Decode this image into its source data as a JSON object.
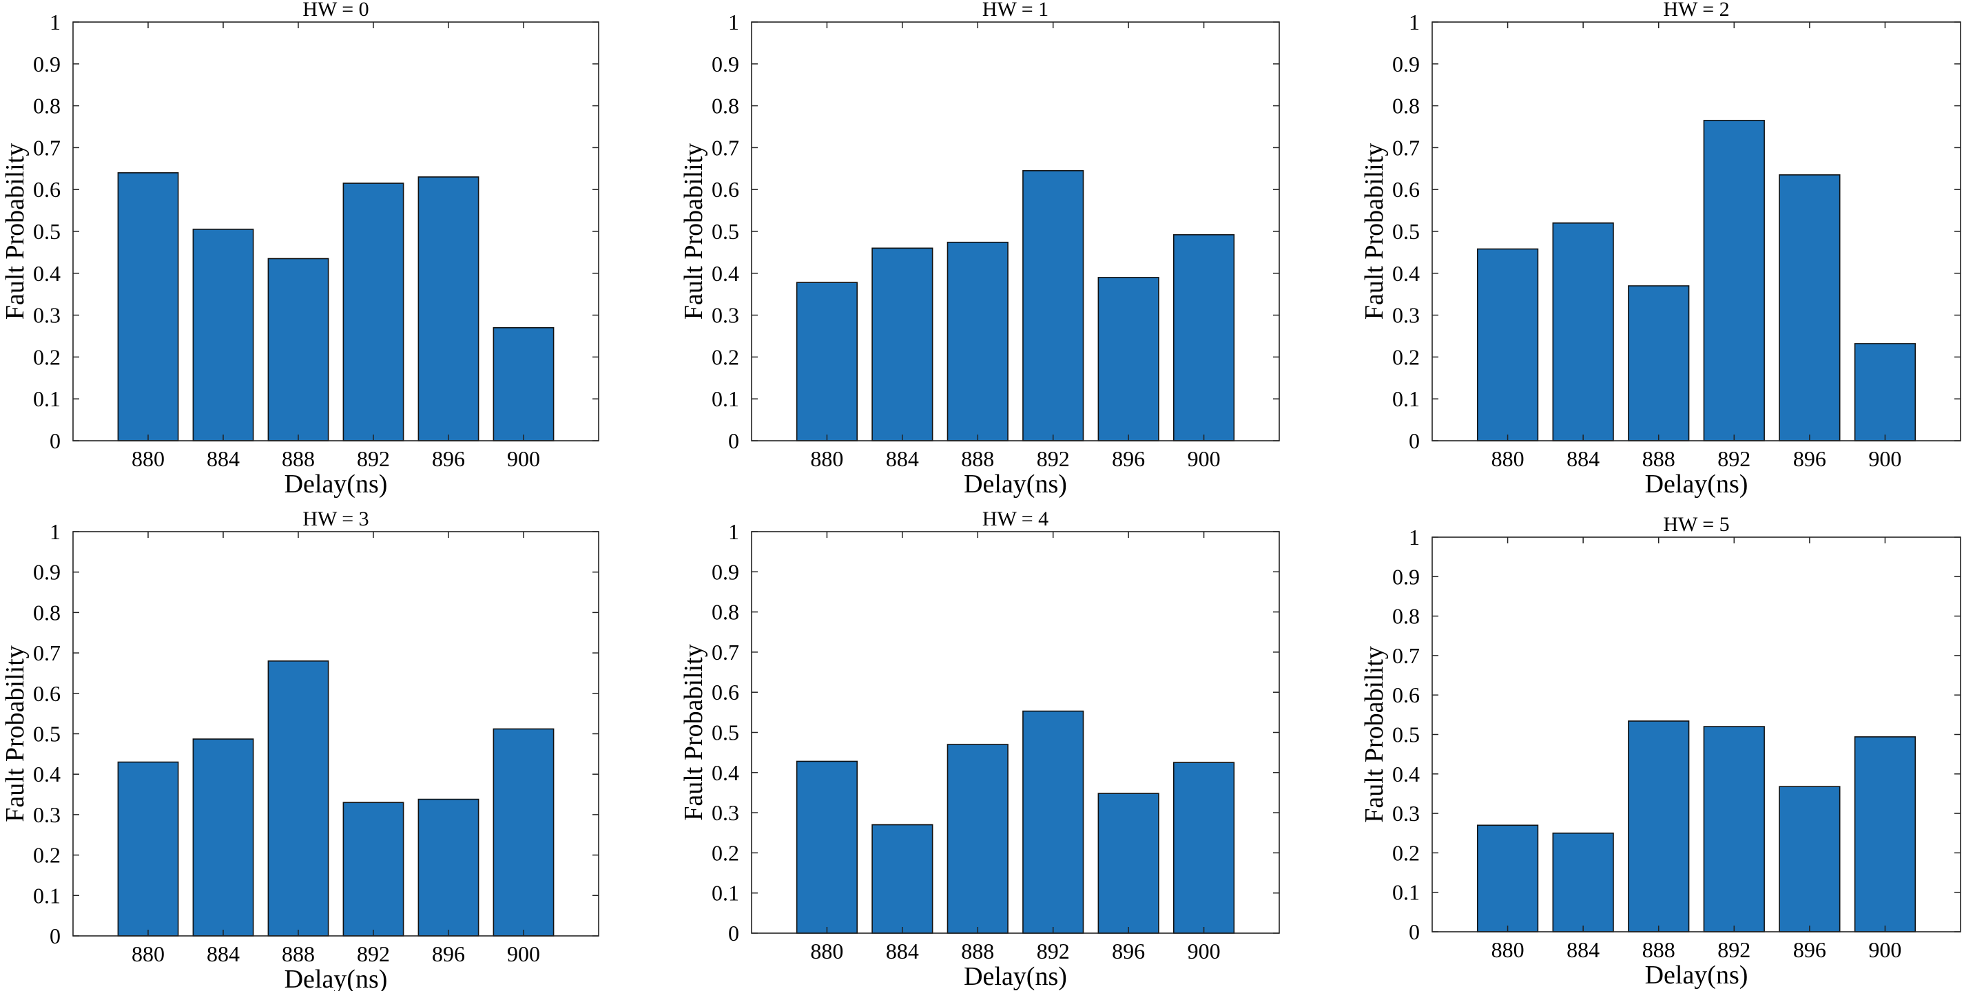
{
  "chart_data": [
    {
      "type": "bar",
      "title": "HW = 0",
      "categories": [
        "880",
        "884",
        "888",
        "892",
        "896",
        "900"
      ],
      "values": [
        0.64,
        0.505,
        0.435,
        0.615,
        0.63,
        0.27
      ],
      "xlabel": "Delay(ns)",
      "ylabel": "Fault Probability",
      "ylim": [
        0,
        1
      ],
      "yticks": [
        "0",
        "0.1",
        "0.2",
        "0.3",
        "0.4",
        "0.5",
        "0.6",
        "0.7",
        "0.8",
        "0.9",
        "1"
      ],
      "bar_color": "#1f74ba",
      "grid": false
    },
    {
      "type": "bar",
      "title": "HW = 1",
      "categories": [
        "880",
        "884",
        "888",
        "892",
        "896",
        "900"
      ],
      "values": [
        0.378,
        0.46,
        0.474,
        0.645,
        0.39,
        0.492
      ],
      "xlabel": "Delay(ns)",
      "ylabel": "Fault Probability",
      "ylim": [
        0,
        1
      ],
      "yticks": [
        "0",
        "0.1",
        "0.2",
        "0.3",
        "0.4",
        "0.5",
        "0.6",
        "0.7",
        "0.8",
        "0.9",
        "1"
      ],
      "bar_color": "#1f74ba",
      "grid": false
    },
    {
      "type": "bar",
      "title": "HW = 2",
      "categories": [
        "880",
        "884",
        "888",
        "892",
        "896",
        "900"
      ],
      "values": [
        0.458,
        0.52,
        0.37,
        0.765,
        0.635,
        0.232
      ],
      "xlabel": "Delay(ns)",
      "ylabel": "Fault Probability",
      "ylim": [
        0,
        1
      ],
      "yticks": [
        "0",
        "0.1",
        "0.2",
        "0.3",
        "0.4",
        "0.5",
        "0.6",
        "0.7",
        "0.8",
        "0.9",
        "1"
      ],
      "bar_color": "#1f74ba",
      "grid": false
    },
    {
      "type": "bar",
      "title": "HW = 3",
      "categories": [
        "880",
        "884",
        "888",
        "892",
        "896",
        "900"
      ],
      "values": [
        0.43,
        0.487,
        0.68,
        0.33,
        0.338,
        0.512
      ],
      "xlabel": "Delay(ns)",
      "ylabel": "Fault Probability",
      "ylim": [
        0,
        1
      ],
      "yticks": [
        "0",
        "0.1",
        "0.2",
        "0.3",
        "0.4",
        "0.5",
        "0.6",
        "0.7",
        "0.8",
        "0.9",
        "1"
      ],
      "bar_color": "#1f74ba",
      "grid": false
    },
    {
      "type": "bar",
      "title": "HW = 4",
      "categories": [
        "880",
        "884",
        "888",
        "892",
        "896",
        "900"
      ],
      "values": [
        0.428,
        0.27,
        0.47,
        0.553,
        0.348,
        0.425
      ],
      "xlabel": "Delay(ns)",
      "ylabel": "Fault Probability",
      "ylim": [
        0,
        1
      ],
      "yticks": [
        "0",
        "0.1",
        "0.2",
        "0.3",
        "0.4",
        "0.5",
        "0.6",
        "0.7",
        "0.8",
        "0.9",
        "1"
      ],
      "bar_color": "#1f74ba",
      "grid": false
    },
    {
      "type": "bar",
      "title": "HW = 5",
      "categories": [
        "880",
        "884",
        "888",
        "892",
        "896",
        "900"
      ],
      "values": [
        0.27,
        0.25,
        0.534,
        0.52,
        0.368,
        0.494
      ],
      "xlabel": "Delay(ns)",
      "ylabel": "Fault Probability",
      "ylim": [
        0,
        1
      ],
      "yticks": [
        "0",
        "0.1",
        "0.2",
        "0.3",
        "0.4",
        "0.5",
        "0.6",
        "0.7",
        "0.8",
        "0.9",
        "1"
      ],
      "bar_color": "#1f74ba",
      "grid": false
    }
  ]
}
